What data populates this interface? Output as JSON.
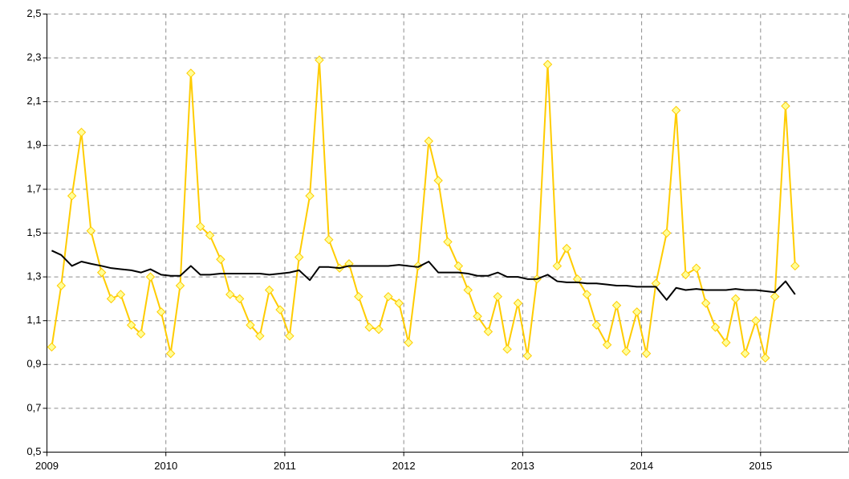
{
  "chart_data": {
    "type": "line",
    "x": [
      2009.04,
      2009.12,
      2009.21,
      2009.29,
      2009.37,
      2009.46,
      2009.54,
      2009.62,
      2009.71,
      2009.79,
      2009.87,
      2009.96,
      2010.04,
      2010.12,
      2010.21,
      2010.29,
      2010.37,
      2010.46,
      2010.54,
      2010.62,
      2010.71,
      2010.79,
      2010.87,
      2010.96,
      2011.04,
      2011.12,
      2011.21,
      2011.29,
      2011.37,
      2011.46,
      2011.54,
      2011.62,
      2011.71,
      2011.79,
      2011.87,
      2011.96,
      2012.04,
      2012.12,
      2012.21,
      2012.29,
      2012.37,
      2012.46,
      2012.54,
      2012.62,
      2012.71,
      2012.79,
      2012.87,
      2012.96,
      2013.04,
      2013.12,
      2013.21,
      2013.29,
      2013.37,
      2013.46,
      2013.54,
      2013.62,
      2013.71,
      2013.79,
      2013.87,
      2013.96,
      2014.04,
      2014.12,
      2014.21,
      2014.29,
      2014.37,
      2014.46,
      2014.54,
      2014.62,
      2014.71,
      2014.79,
      2014.87,
      2014.96,
      2015.04,
      2015.12,
      2015.21,
      2015.29
    ],
    "series": [
      {
        "color": "#ffcc00",
        "marker_fill": "#ffff99",
        "marker": "diamond",
        "values": [
          0.98,
          1.26,
          1.67,
          1.96,
          1.51,
          1.32,
          1.2,
          1.22,
          1.08,
          1.04,
          1.3,
          1.14,
          0.95,
          1.26,
          2.23,
          1.53,
          1.49,
          1.38,
          1.22,
          1.2,
          1.08,
          1.03,
          1.24,
          1.15,
          1.03,
          1.39,
          1.67,
          2.29,
          1.47,
          1.34,
          1.36,
          1.21,
          1.07,
          1.06,
          1.21,
          1.18,
          1.0,
          1.35,
          1.92,
          1.74,
          1.46,
          1.35,
          1.24,
          1.12,
          1.05,
          1.21,
          0.97,
          1.18,
          0.94,
          1.29,
          2.27,
          1.35,
          1.43,
          1.29,
          1.22,
          1.08,
          0.99,
          1.17,
          0.96,
          1.14,
          0.95,
          1.27,
          1.5,
          2.06,
          1.31,
          1.34,
          1.18,
          1.07,
          1.0,
          1.2,
          0.95,
          1.1,
          0.93,
          1.21,
          2.08,
          1.35
        ]
      },
      {
        "color": "#000000",
        "values": [
          1.42,
          1.4,
          1.35,
          1.37,
          1.36,
          1.35,
          1.34,
          1.335,
          1.33,
          1.32,
          1.335,
          1.31,
          1.305,
          1.305,
          1.35,
          1.31,
          1.31,
          1.315,
          1.315,
          1.315,
          1.315,
          1.315,
          1.31,
          1.315,
          1.32,
          1.33,
          1.285,
          1.345,
          1.345,
          1.34,
          1.35,
          1.35,
          1.35,
          1.35,
          1.35,
          1.355,
          1.35,
          1.345,
          1.37,
          1.32,
          1.32,
          1.32,
          1.315,
          1.305,
          1.305,
          1.32,
          1.3,
          1.3,
          1.29,
          1.29,
          1.31,
          1.28,
          1.275,
          1.275,
          1.27,
          1.27,
          1.265,
          1.26,
          1.26,
          1.255,
          1.255,
          1.255,
          1.195,
          1.25,
          1.24,
          1.245,
          1.24,
          1.24,
          1.24,
          1.245,
          1.24,
          1.24,
          1.235,
          1.23,
          1.28,
          1.22
        ]
      }
    ],
    "xlim": [
      2009,
      2015.74
    ],
    "xticks": [
      2009,
      2010,
      2011,
      2012,
      2013,
      2014,
      2015
    ],
    "ylim": [
      0.5,
      2.5
    ],
    "yticks": [
      {
        "value": 0.5,
        "label": "0,5"
      },
      {
        "value": 0.7,
        "label": "0,7"
      },
      {
        "value": 0.9,
        "label": "0,9"
      },
      {
        "value": 1.1,
        "label": "1,1"
      },
      {
        "value": 1.3,
        "label": "1,3"
      },
      {
        "value": 1.5,
        "label": "1,5"
      },
      {
        "value": 1.7,
        "label": "1,7"
      },
      {
        "value": 1.9,
        "label": "1,9"
      },
      {
        "value": 2.1,
        "label": "2,1"
      },
      {
        "value": 2.3,
        "label": "2,3"
      },
      {
        "value": 2.5,
        "label": "2,5"
      }
    ],
    "grid": true
  }
}
